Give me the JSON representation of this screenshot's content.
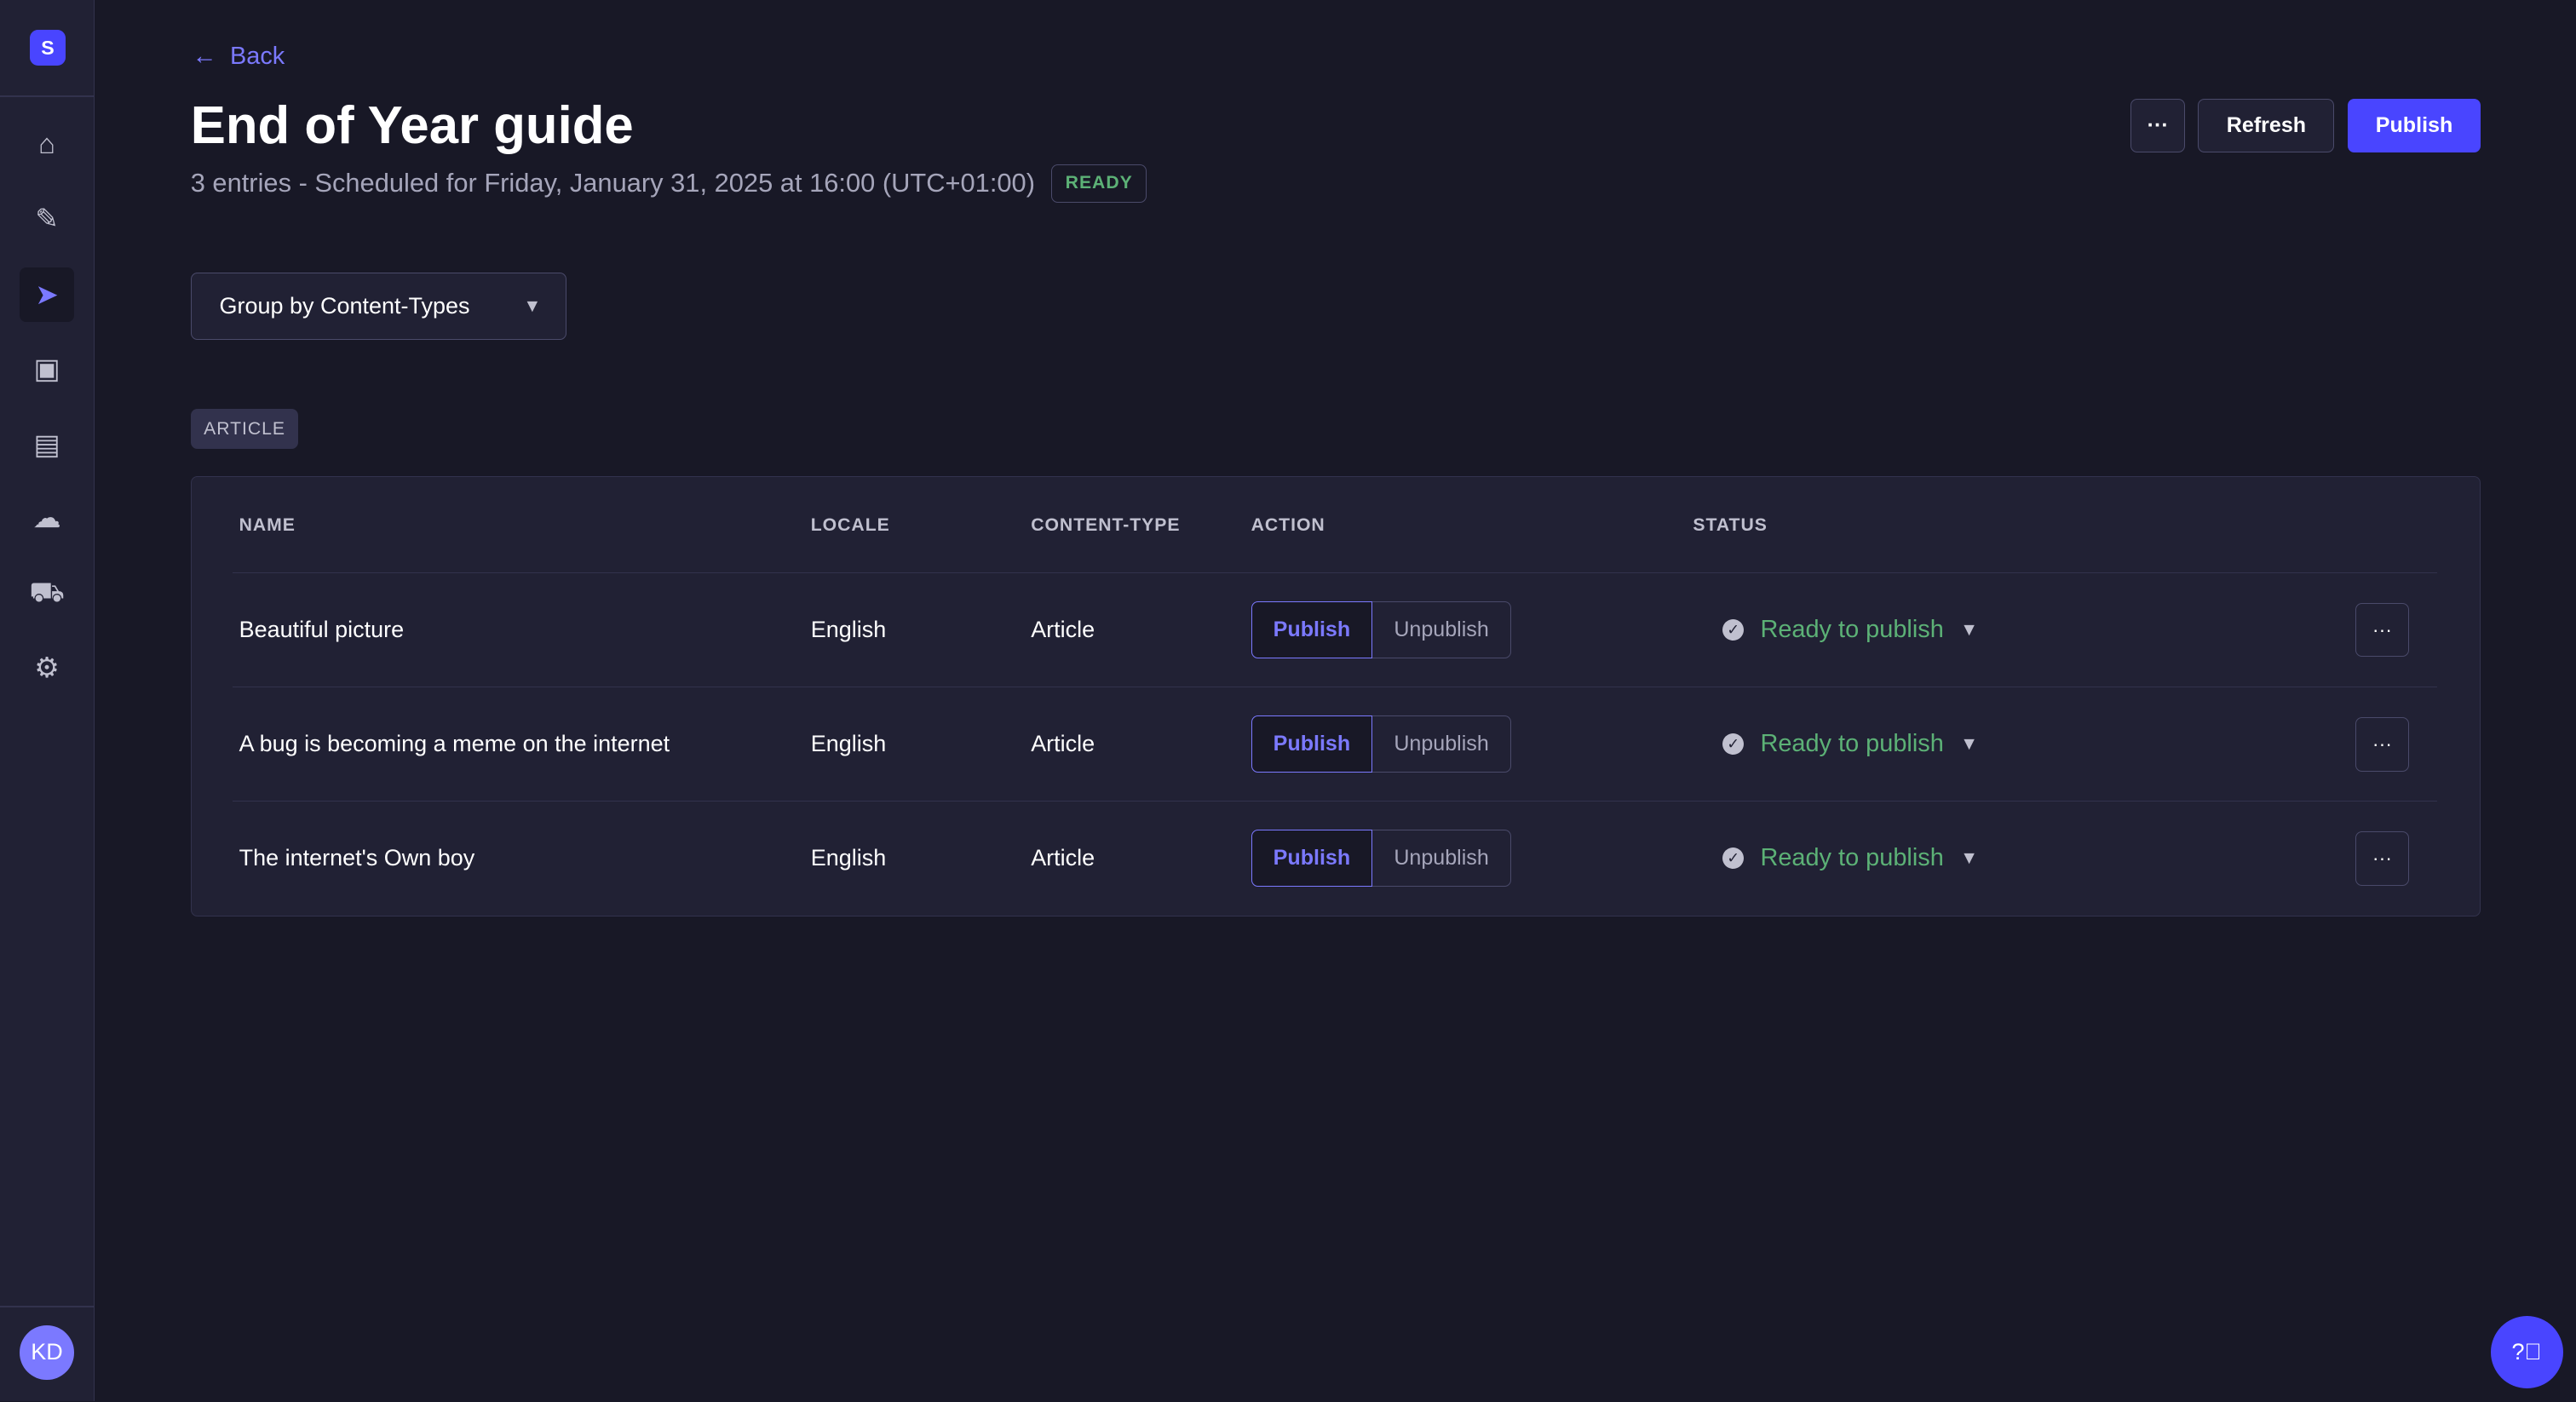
{
  "sidebar": {
    "logo": "S",
    "avatar": "KD",
    "items": [
      {
        "icon": "home-icon",
        "glyph": "⌂"
      },
      {
        "icon": "feather-icon",
        "glyph": "✎"
      },
      {
        "icon": "paper-plane-icon",
        "glyph": "➤",
        "active": true
      },
      {
        "icon": "media-library-icon",
        "glyph": "▣"
      },
      {
        "icon": "layout-icon",
        "glyph": "▤"
      },
      {
        "icon": "cloud-icon",
        "glyph": "☁"
      },
      {
        "icon": "cart-icon",
        "glyph": "🛒"
      },
      {
        "icon": "gear-icon",
        "glyph": "⚙"
      }
    ]
  },
  "header": {
    "back": "Back",
    "title": "End of Year guide",
    "subtitle": "3 entries - Scheduled for Friday, January 31, 2025 at 16:00 (UTC+01:00)",
    "badge": "READY",
    "more": "···",
    "refresh": "Refresh",
    "publish": "Publish"
  },
  "group_by": {
    "value": "Group by Content-Types"
  },
  "group_tag": "ARTICLE",
  "table": {
    "headers": {
      "name": "NAME",
      "locale": "LOCALE",
      "content_type": "CONTENT-TYPE",
      "action": "ACTION",
      "status": "STATUS"
    },
    "rows": [
      {
        "name": "Beautiful picture",
        "locale": "English",
        "content_type": "Article",
        "publish": "Publish",
        "unpublish": "Unpublish",
        "status": "Ready to publish",
        "more": "···"
      },
      {
        "name": "A bug is becoming a meme on the internet",
        "locale": "English",
        "content_type": "Article",
        "publish": "Publish",
        "unpublish": "Unpublish",
        "status": "Ready to publish",
        "more": "···"
      },
      {
        "name": "The internet's Own boy",
        "locale": "English",
        "content_type": "Article",
        "publish": "Publish",
        "unpublish": "Unpublish",
        "status": "Ready to publish",
        "more": "···"
      }
    ]
  },
  "colors": {
    "accent": "#4945ff",
    "success": "#5cb176",
    "background": "#181826",
    "surface": "#212134"
  }
}
